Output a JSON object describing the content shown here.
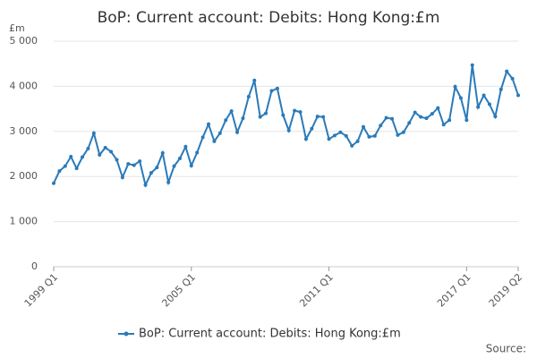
{
  "chart_data": {
    "type": "line",
    "title": "BoP: Current account: Debits: Hong Kong:£m",
    "y_unit": "£m",
    "source": "Source:",
    "categories": [
      "1999 Q1",
      null,
      null,
      null,
      null,
      null,
      null,
      null,
      null,
      null,
      null,
      null,
      null,
      null,
      null,
      null,
      null,
      null,
      null,
      null,
      null,
      null,
      null,
      null,
      "2005 Q1",
      null,
      null,
      null,
      null,
      null,
      null,
      null,
      null,
      null,
      null,
      null,
      null,
      null,
      null,
      null,
      null,
      null,
      null,
      null,
      null,
      null,
      null,
      null,
      "2011 Q1",
      null,
      null,
      null,
      null,
      null,
      null,
      null,
      null,
      null,
      null,
      null,
      null,
      null,
      null,
      null,
      null,
      null,
      null,
      null,
      null,
      null,
      null,
      null,
      "2017 Q1",
      null,
      null,
      null,
      null,
      null,
      null,
      null,
      null,
      "2019 Q2"
    ],
    "series": [
      {
        "name": "BoP: Current account: Debits: Hong Kong:£m",
        "color": "#2a7ab9",
        "values": [
          1850,
          2120,
          2230,
          2440,
          2180,
          2430,
          2620,
          2960,
          2480,
          2640,
          2550,
          2370,
          1980,
          2280,
          2250,
          2340,
          1810,
          2080,
          2200,
          2520,
          1870,
          2230,
          2400,
          2660,
          2240,
          2530,
          2870,
          3160,
          2780,
          2960,
          3250,
          3450,
          2980,
          3290,
          3770,
          4130,
          3320,
          3400,
          3900,
          3950,
          3360,
          3020,
          3460,
          3430,
          2830,
          3060,
          3330,
          3320,
          2830,
          2910,
          2980,
          2900,
          2680,
          2780,
          3100,
          2880,
          2900,
          3130,
          3300,
          3280,
          2920,
          2980,
          3190,
          3420,
          3320,
          3290,
          3390,
          3520,
          3150,
          3250,
          3990,
          3740,
          3250,
          4470,
          3540,
          3800,
          3600,
          3330,
          3930,
          4330,
          4170,
          3800
        ]
      }
    ],
    "ylim": [
      0,
      5000
    ],
    "yticks": [
      0,
      {
        "value": 1000,
        "label": "1 000"
      },
      {
        "value": 2000,
        "label": "2 000"
      },
      {
        "value": 3000,
        "label": "3 000"
      },
      {
        "value": 4000,
        "label": "4 000"
      },
      {
        "value": 5000,
        "label": "5 000"
      }
    ],
    "grid": true,
    "legend": "bottom"
  }
}
